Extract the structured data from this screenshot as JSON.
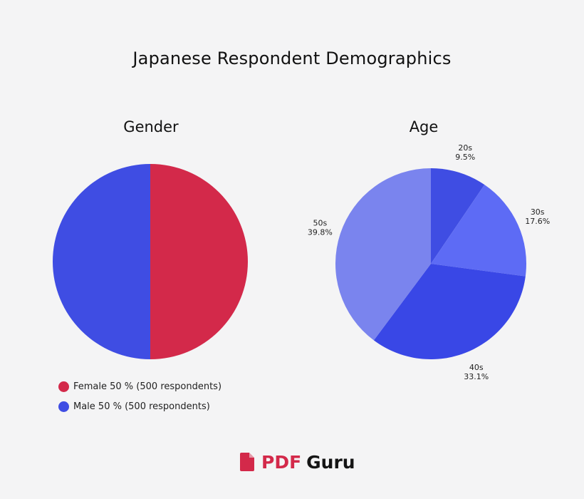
{
  "title": "Japanese Respondent Demographics",
  "brand": {
    "pdf": "PDF",
    "guru": "Guru",
    "pdf_color": "#d3294a",
    "guru_color": "#151515"
  },
  "chart_data": [
    {
      "type": "pie",
      "title": "Gender",
      "categories": [
        "Female",
        "Male"
      ],
      "values": [
        50,
        50
      ],
      "colors": [
        "#d3294a",
        "#3f4de3"
      ],
      "legend_position": "bottom-left",
      "legend": [
        "Female 50 % (500 respondents)",
        "Male 50 % (500 respondents)"
      ]
    },
    {
      "type": "pie",
      "title": "Age",
      "categories": [
        "20s",
        "30s",
        "40s",
        "50s"
      ],
      "values": [
        9.5,
        17.6,
        33.1,
        39.8
      ],
      "labels": [
        {
          "category": "20s",
          "value": "9.5%"
        },
        {
          "category": "30s",
          "value": "17.6%"
        },
        {
          "category": "40s",
          "value": "33.1%"
        },
        {
          "category": "50s",
          "value": "39.8%"
        }
      ],
      "colors": [
        "#3f4de3",
        "#5d6bf5",
        "#3947e6",
        "#7a84ee"
      ]
    }
  ]
}
